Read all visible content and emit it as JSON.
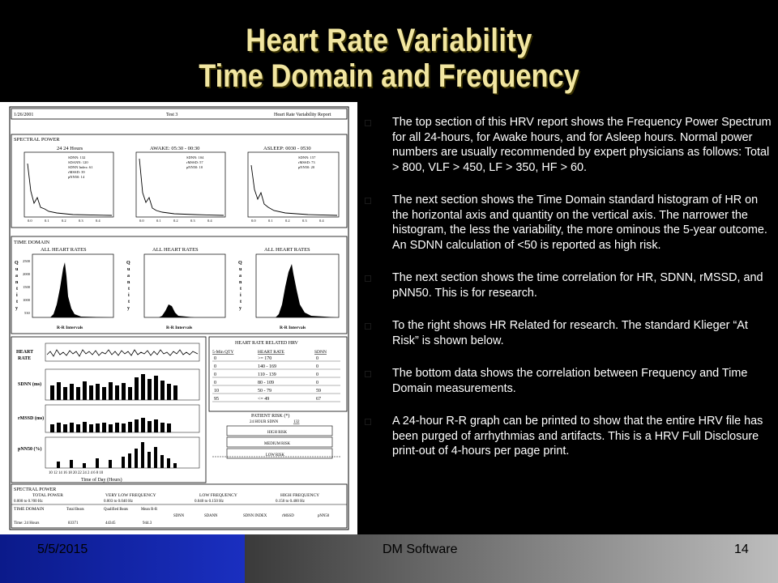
{
  "slide": {
    "title_line1": "Heart Rate Variability",
    "title_line2": "Time Domain and Frequency"
  },
  "report": {
    "header_date": "1/26/2001",
    "header_test": "Test 3",
    "header_title": "Heart Rate Variability Report",
    "spectral_power_label": "SPECTRAL POWER",
    "panels": [
      {
        "label": "24 24 Hours",
        "stats": [
          "SDNN: 132",
          "SDANN: 120",
          "SDNN Index: 61",
          "rMSSD: 39",
          "pNN50: 14"
        ]
      },
      {
        "label": "AWAKE: 05:30 - 00:30",
        "stats": [
          "SDNN: 104",
          "rMSSD: 57",
          "pNN50: 10"
        ]
      },
      {
        "label": "ASLEEP: 0030 - 0530",
        "stats": [
          "SDNN: 157",
          "rMSSD: 73",
          "pNN50: 20"
        ]
      }
    ],
    "spectral_axis": [
      "0.0",
      "0.1",
      "0.2",
      "0.3",
      "0.4",
      "0.5"
    ],
    "time_domain_label": "TIME DOMAIN",
    "all_heart_rates": "ALL HEART RATES",
    "quantity_letters": [
      "Q",
      "u",
      "a",
      "n",
      "t",
      "i",
      "t",
      "y"
    ],
    "hist_y": [
      "2500",
      "2000",
      "1500",
      "1000",
      "530"
    ],
    "rr_intervals": "R-R Intervals",
    "hist_x": "40 600 60 70 80 90 40 33",
    "hr_label": "HEART RATE",
    "sdnn_label": "SDNN (ms)",
    "rmssd_label": "rMSSD (ms)",
    "pnn50_label": "pNN50 (%)",
    "time_of_day": "Time of Day (Hours)",
    "time_ticks": "10 12 14 16 18 20 22 24 2 4 6 8 10",
    "hrr_title": "HEART RATE RELATED HRV",
    "hrr_headers": [
      "5-Min QTY",
      "HEART RATE",
      "SDNN"
    ],
    "hrr_rows": [
      [
        "0",
        ">= 170",
        "0"
      ],
      [
        "0",
        "140 - 169",
        "0"
      ],
      [
        "0",
        "110 - 139",
        "0"
      ],
      [
        "0",
        "80 - 109",
        "0"
      ],
      [
        "10",
        "50 - 79",
        "59"
      ],
      [
        "95",
        "<= 49",
        "67"
      ]
    ],
    "patient_risk": "PATIENT RISK (*)",
    "risk_sub": "24 HOUR SDNN",
    "risk_val": "132",
    "risk_levels": [
      "HIGH RISK",
      "MEDIUM RISK",
      "LOW RISK"
    ],
    "bottom_spectral": "SPECTRAL POWER",
    "bottom_cols": [
      "TOTAL POWER",
      "VERY LOW FREQUENCY",
      "LOW FREQUENCY",
      "HIGH FREQUENCY"
    ],
    "bottom_ranges": [
      "0.000 to 0.?00 Hz",
      "0.003 to 0.040 Hz",
      "0.040 to 0.150 Hz",
      "0.150 to 0.400 Hz"
    ],
    "bottom_td": "TIME DOMAIN",
    "bottom_td_cols": [
      "Total Beats",
      "Qualified Beats",
      "Mean R-R",
      "SDNN",
      "SDANN",
      "SDNN INDEX",
      "rMSSD",
      "pNN50"
    ],
    "bottom_row_label": "Time: 24 Hours",
    "bottom_row_vals": [
      "83371",
      "44345",
      "944.3"
    ]
  },
  "bullets": [
    "The top section of this HRV report shows the Frequency Power Spectrum for all 24-hours, for Awake hours, and for Asleep hours. Normal power numbers are usually recommended by expert physicians as follows: Total > 800, VLF > 450, LF > 350, HF > 60.",
    "The next section shows the Time Domain standard histogram of HR on the horizontal axis and quantity on the vertical axis.   The narrower the histogram, the less the variability, the more ominous the 5-year outcome.   An SDNN calculation of <50 is reported as high risk.",
    "The next section shows the time correlation for HR, SDNN, rMSSD, and pNN50.   This is for research.",
    "To the right shows HR Related for research.   The standard Klieger “At Risk” is shown below.",
    "The bottom data shows the correlation between Frequency and Time Domain measurements.",
    "A 24-hour R-R graph can be printed to show that the entire HRV file has been purged of arrhythmias and artifacts.   This is a HRV Full Disclosure print-out of 4-hours per page print."
  ],
  "footer": {
    "date": "5/5/2015",
    "center": "DM Software",
    "page": "14"
  },
  "colors": {
    "title": "#f2e6a1",
    "footer_blue": "#1a2fc0",
    "background": "#000000"
  }
}
